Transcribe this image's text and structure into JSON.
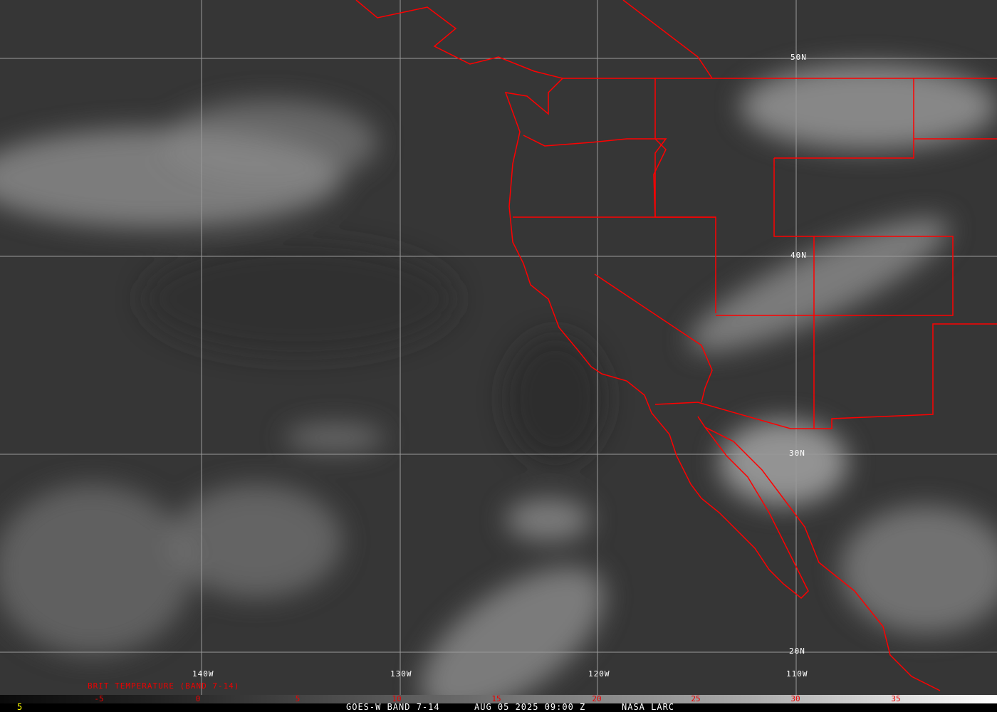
{
  "map": {
    "latitude_labels": [
      "50N",
      "40N",
      "30N",
      "20N"
    ],
    "longitude_labels": [
      "140W",
      "130W",
      "120W",
      "110W"
    ],
    "border_color": "#ff0000",
    "grid_color": "#9a9a9a"
  },
  "legend": {
    "title": "BRIT TEMPERATURE (BAND 7-14)",
    "ticks": [
      "-5",
      "0",
      "5",
      "10",
      "15",
      "20",
      "25",
      "30",
      "35"
    ],
    "tick_color": "#ff0000"
  },
  "footer": {
    "frame_number": "5",
    "satellite": "GOES-W BAND 7-14",
    "datetime": "AUG 05 2025 09:00 Z",
    "source": "NASA LARC"
  }
}
